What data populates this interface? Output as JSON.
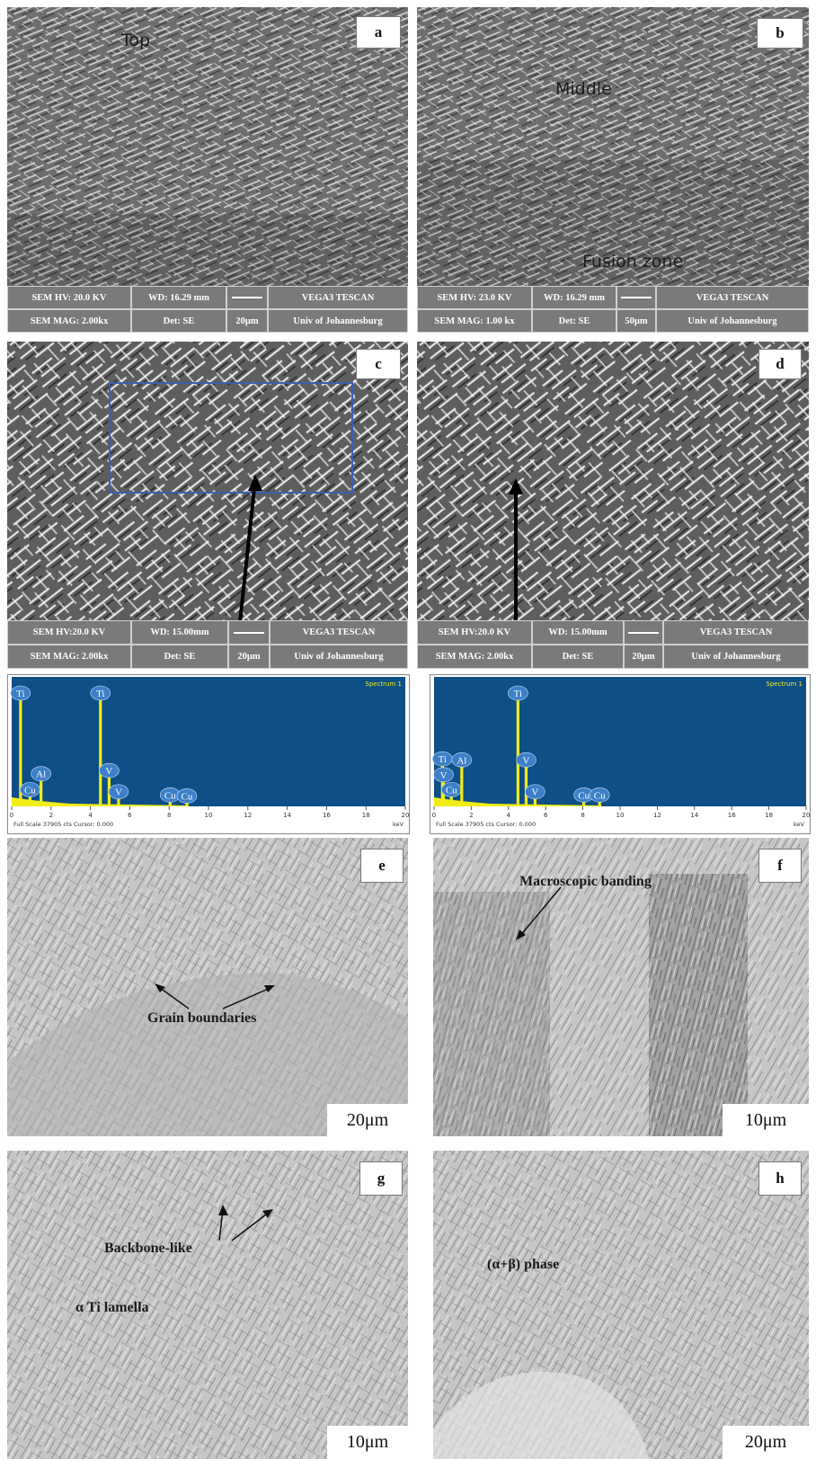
{
  "figure": {
    "panels": {
      "a": {
        "letter": "a",
        "region_label": "Top",
        "sem": {
          "hv": "SEM HV: 20.0 KV",
          "wd": "WD: 16.29 mm",
          "vendor": "VEGA3 TESCAN",
          "mag": "SEM MAG: 2.00kx",
          "det": "Det: SE",
          "scale": "20μm",
          "univ": "Univ of Johannesburg"
        }
      },
      "b": {
        "letter": "b",
        "region_label_1": "Middle",
        "region_label_2": "Fusion zone",
        "sem": {
          "hv": "SEM HV: 23.0 KV",
          "wd": "WD: 16.29 mm",
          "vendor": "VEGA3 TESCAN",
          "mag": "SEM MAG: 1.00 kx",
          "det": "Det: SE",
          "scale": "50μm",
          "univ": "Univ of Johannesburg"
        }
      },
      "c": {
        "letter": "c",
        "sem": {
          "hv": "SEM HV:20.0 KV",
          "wd": "WD: 15.00mm",
          "vendor": "VEGA3 TESCAN",
          "mag": "SEM MAG: 2.00kx",
          "det": "Det: SE",
          "scale": "20μm",
          "univ": "Univ of Johannesburg"
        }
      },
      "d": {
        "letter": "d",
        "sem": {
          "hv": "SEM HV:20.0 KV",
          "wd": "WD: 15.00mm",
          "vendor": "VEGA3 TESCAN",
          "mag": "SEM MAG: 2.00kx",
          "det": "Det: SE",
          "scale": "20μm",
          "univ": "Univ of Johannesburg"
        }
      },
      "e": {
        "letter": "e",
        "annotation": "Grain boundaries",
        "scale": "20μm"
      },
      "f": {
        "letter": "f",
        "annotation": "Macroscopic banding",
        "scale": "10μm"
      },
      "g": {
        "letter": "g",
        "annotation_1": "Backbone-like",
        "annotation_2": "α Ti lamella",
        "scale": "10μm"
      },
      "h": {
        "letter": "h",
        "annotation": "(α+β) phase",
        "scale": "20μm"
      }
    },
    "spectra": {
      "left": {
        "title": "Spectrum 1",
        "footer": "Full Scale 37905 cts Cursor: 0.000",
        "unit": "keV",
        "ticks": [
          "0",
          "2",
          "4",
          "6",
          "8",
          "10",
          "12",
          "14",
          "16",
          "18",
          "20"
        ],
        "tick_values": [
          0,
          2,
          4,
          6,
          8,
          10,
          12,
          14,
          16,
          18,
          20
        ],
        "peaks": [
          {
            "label": "Ti",
            "kev": 0.45,
            "rel": 1.0
          },
          {
            "label": "Cu",
            "kev": 0.93,
            "rel": 0.09
          },
          {
            "label": "Al",
            "kev": 1.49,
            "rel": 0.24
          },
          {
            "label": "Ti",
            "kev": 4.51,
            "rel": 1.0
          },
          {
            "label": "V",
            "kev": 4.95,
            "rel": 0.27
          },
          {
            "label": "V",
            "kev": 5.43,
            "rel": 0.07
          },
          {
            "label": "Cu",
            "kev": 8.05,
            "rel": 0.04
          },
          {
            "label": "Cu",
            "kev": 8.9,
            "rel": 0.03
          }
        ]
      },
      "right": {
        "title": "Spectrum 1",
        "footer": "Full Scale 37905 cts Cursor: 0.000",
        "unit": "keV",
        "ticks": [
          "0",
          "2",
          "4",
          "6",
          "8",
          "10",
          "12",
          "14",
          "16",
          "18",
          "20"
        ],
        "tick_values": [
          0,
          2,
          4,
          6,
          8,
          10,
          12,
          14,
          16,
          18,
          20
        ],
        "peaks": [
          {
            "label": "Ti",
            "kev": 0.45,
            "rel": 0.38
          },
          {
            "label": "V",
            "kev": 0.51,
            "rel": 0.23
          },
          {
            "label": "Cu",
            "kev": 0.93,
            "rel": 0.09
          },
          {
            "label": "Al",
            "kev": 1.49,
            "rel": 0.37
          },
          {
            "label": "Ti",
            "kev": 4.51,
            "rel": 1.0
          },
          {
            "label": "V",
            "kev": 4.95,
            "rel": 0.37
          },
          {
            "label": "V",
            "kev": 5.43,
            "rel": 0.07
          },
          {
            "label": "Cu",
            "kev": 8.05,
            "rel": 0.04
          },
          {
            "label": "Cu",
            "kev": 8.9,
            "rel": 0.04
          }
        ]
      }
    },
    "colors": {
      "sem_bar": "#7e7e7e",
      "spectrum_bg": "#0d4f86",
      "peak": "#f2ec16",
      "label_bubble": "#3d7fc8",
      "highlight_box": "#3a5fb0"
    }
  }
}
